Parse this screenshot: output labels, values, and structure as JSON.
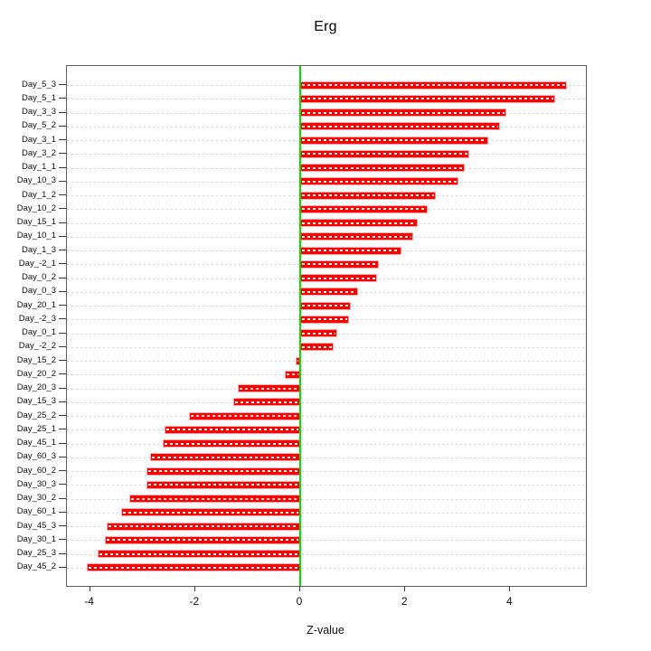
{
  "title": "Erg",
  "x_axis_label": "Z-value",
  "colors": {
    "bar_fill": "#fe0000",
    "bar_border": "#ffabab",
    "bar_inner_dash": "#ffffff",
    "zero_line": "#00df00",
    "gridline": "#d3d3d3",
    "plot_border": "#5f5f5f",
    "text": "#000000"
  },
  "chart_data": {
    "type": "bar",
    "orientation": "horizontal",
    "title": "Erg",
    "xlabel": "Z-value",
    "ylabel": "",
    "xlim": [
      -4.44,
      5.45
    ],
    "x_ticks": [
      -4,
      -2,
      0,
      2,
      4
    ],
    "grid": "dotted-horizontal-per-category",
    "zero_reference_line": 0,
    "legend": "none",
    "categories": [
      "Day_5_3",
      "Day_5_1",
      "Day_3_3",
      "Day_5_2",
      "Day_3_1",
      "Day_3_2",
      "Day_1_1",
      "Day_10_3",
      "Day_1_2",
      "Day_10_2",
      "Day_15_1",
      "Day_10_1",
      "Day_1_3",
      "Day_-2_1",
      "Day_0_2",
      "Day_0_3",
      "Day_20_1",
      "Day_-2_3",
      "Day_0_1",
      "Day_-2_2",
      "Day_15_2",
      "Day_20_2",
      "Day_20_3",
      "Day_15_3",
      "Day_25_2",
      "Day_25_1",
      "Day_45_1",
      "Day_60_3",
      "Day_60_2",
      "Day_30_3",
      "Day_30_2",
      "Day_60_1",
      "Day_45_3",
      "Day_30_1",
      "Day_25_3",
      "Day_45_2"
    ],
    "values": [
      5.08,
      4.85,
      3.92,
      3.81,
      3.58,
      3.21,
      3.13,
      3.02,
      2.59,
      2.43,
      2.23,
      2.15,
      1.92,
      1.5,
      1.46,
      1.11,
      0.97,
      0.93,
      0.71,
      0.63,
      -0.09,
      -0.3,
      -1.18,
      -1.27,
      -2.12,
      -2.59,
      -2.61,
      -2.86,
      -2.92,
      -2.93,
      -3.26,
      -3.4,
      -3.69,
      -3.72,
      -3.85,
      -4.07
    ]
  }
}
